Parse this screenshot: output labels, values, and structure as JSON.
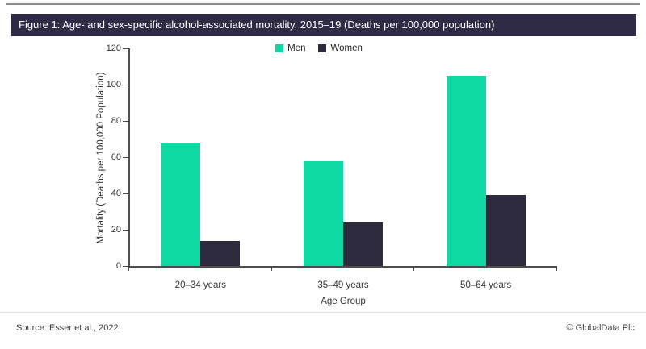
{
  "title_bar": {
    "text": "Figure 1: Age- and sex-specific alcohol-associated mortality, 2015–19 (Deaths per 100,000 population)"
  },
  "colors": {
    "title_bar_bg": "#2f2b47",
    "men": "#0ed9a3",
    "women": "#2d2a3e",
    "axis": "#4d4d4d"
  },
  "chart_data": {
    "type": "bar",
    "title": "Figure 1: Age- and sex-specific alcohol-associated mortality, 2015–19 (Deaths per 100,000 population)",
    "categories": [
      "20–34 years",
      "35–49 years",
      "50–64 years"
    ],
    "series": [
      {
        "name": "Men",
        "color": "#0ed9a3",
        "values": [
          68,
          58,
          105
        ]
      },
      {
        "name": "Women",
        "color": "#2d2a3e",
        "values": [
          14,
          24,
          39
        ]
      }
    ],
    "xlabel": "Age Group",
    "ylabel": "Mortality (Deaths per 100,000 Population)",
    "ylim": [
      0,
      120
    ],
    "ytick_step": 20,
    "legend_position": "top",
    "grid": false
  },
  "footer": {
    "source": "Source: Esser et al., 2022",
    "copyright": "© GlobalData Plc"
  }
}
